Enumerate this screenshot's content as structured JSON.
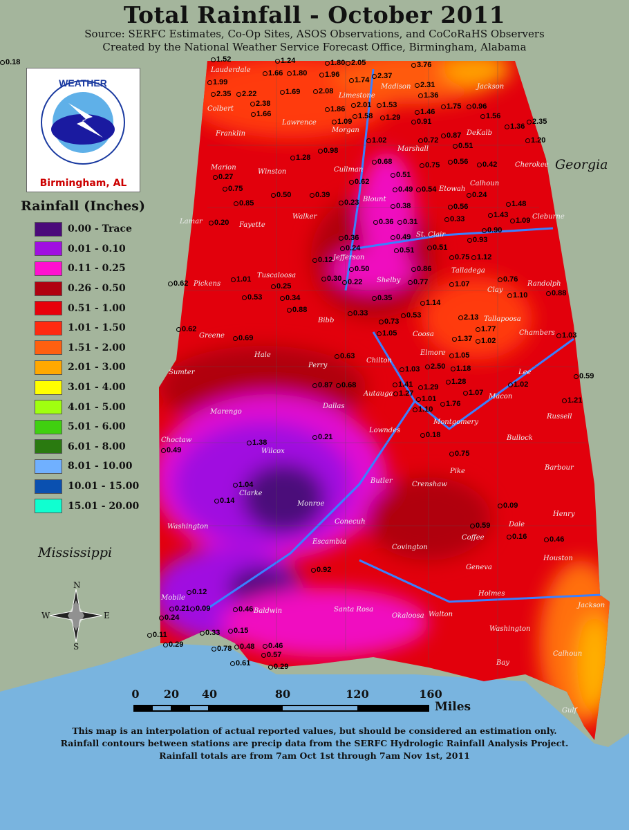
{
  "header": {
    "title": "Total Rainfall - October 2011",
    "source": "Source: SERFC Estimates, Co-Op Sites, ASOS Observations, and CoCoRaHS Observers",
    "created_by": "Created by the National Weather Service Forecast Office, Birmingham, Alabama"
  },
  "logo": {
    "text": "NATIONAL WEATHER SERVICE",
    "city": "Birmingham, AL"
  },
  "legend": {
    "title": "Rainfall (Inches)",
    "items": [
      {
        "label": "0.00 - Trace",
        "color": "#4b0a7a"
      },
      {
        "label": "0.01 - 0.10",
        "color": "#a010e0"
      },
      {
        "label": "0.11 - 0.25",
        "color": "#ff10d0"
      },
      {
        "label": "0.26 - 0.50",
        "color": "#b00010"
      },
      {
        "label": "0.51 - 1.00",
        "color": "#e8000a"
      },
      {
        "label": "1.01 - 1.50",
        "color": "#ff2a10"
      },
      {
        "label": "1.51 - 2.00",
        "color": "#ff6010"
      },
      {
        "label": "2.01 - 3.00",
        "color": "#ffa800"
      },
      {
        "label": "3.01 - 4.00",
        "color": "#ffff00"
      },
      {
        "label": "4.01 - 5.00",
        "color": "#a0ff10"
      },
      {
        "label": "5.01 - 6.00",
        "color": "#40d010"
      },
      {
        "label": "6.01 - 8.00",
        "color": "#2a7a10"
      },
      {
        "label": "8.01 - 10.00",
        "color": "#70b0ff"
      },
      {
        "label": "10.01 - 15.00",
        "color": "#0a50b0"
      },
      {
        "label": "15.01 - 20.00",
        "color": "#10ffd0"
      }
    ]
  },
  "states": {
    "georgia": "Georgia",
    "mississippi": "Mississippi"
  },
  "compass": {
    "n": "N",
    "s": "S",
    "e": "E",
    "w": "W"
  },
  "counties": [
    "Lauderdale",
    "Colbert",
    "Franklin",
    "Lawrence",
    "Limestone",
    "Madison",
    "Jackson",
    "Morgan",
    "Marshall",
    "DeKalb",
    "Cherokee",
    "Marion",
    "Winston",
    "Cullman",
    "Blount",
    "Etowah",
    "Lamar",
    "Fayette",
    "Walker",
    "St. Clair",
    "Calhoun",
    "Cleburne",
    "Pickens",
    "Tuscaloosa",
    "Jefferson",
    "Shelby",
    "Talladega",
    "Clay",
    "Randolph",
    "Greene",
    "Bibb",
    "Coosa",
    "Tallapoosa",
    "Chambers",
    "Sumter",
    "Hale",
    "Perry",
    "Chilton",
    "Autauga",
    "Elmore",
    "Lee",
    "Macon",
    "Russell",
    "Marengo",
    "Dallas",
    "Lowndes",
    "Montgomery",
    "Bullock",
    "Choctaw",
    "Wilcox",
    "Butler",
    "Crenshaw",
    "Pike",
    "Barbour",
    "Clarke",
    "Monroe",
    "Washington",
    "Conecuh",
    "Covington",
    "Coffee",
    "Dale",
    "Henry",
    "Escambia",
    "Geneva",
    "Houston",
    "Mobile",
    "Baldwin",
    "Santa Rosa",
    "Okaloosa",
    "Walton",
    "Holmes",
    "Jackson",
    "Washington",
    "Calhoun",
    "Bay",
    "Gulf"
  ],
  "stations": [
    "1.52",
    "1.24",
    "1.80",
    "2.05",
    "3.76",
    "1.99",
    "1.66",
    "1.80",
    "1.96",
    "1.74",
    "2.37",
    "2.31",
    "2.35",
    "2.22",
    "2.38",
    "1.69",
    "2.08",
    "1.36",
    "1.66",
    "1.86",
    "2.01",
    "1.53",
    "1.75",
    "0.96",
    "1.09",
    "1.58",
    "1.29",
    "0.91",
    "1.46",
    "1.56",
    "1.02",
    "0.72",
    "0.87",
    "1.36",
    "2.35",
    "0.51",
    "1.20",
    "0.98",
    "0.68",
    "0.75",
    "0.56",
    "1.28",
    "0.51",
    "0.42",
    "0.27",
    "0.62",
    "0.49",
    "0.54",
    "0.24",
    "0.75",
    "0.85",
    "0.50",
    "0.39",
    "0.23",
    "0.38",
    "0.56",
    "1.48",
    "0.20",
    "0.36",
    "0.31",
    "0.33",
    "1.43",
    "1.09",
    "0.36",
    "0.49",
    "0.93",
    "0.90",
    "0.24",
    "0.51",
    "0.51",
    "0.12",
    "0.75",
    "1.12",
    "0.62",
    "1.01",
    "0.30",
    "0.50",
    "0.86",
    "0.25",
    "0.22",
    "0.77",
    "1.07",
    "0.76",
    "0.53",
    "0.34",
    "0.35",
    "1.14",
    "1.10",
    "0.88",
    "0.88",
    "0.33",
    "0.73",
    "0.53",
    "2.13",
    "0.62",
    "1.05",
    "1.37",
    "1.77",
    "0.69",
    "1.05",
    "1.02",
    "1.18",
    "1.03",
    "0.63",
    "1.03",
    "2.50",
    "1.28",
    "1.07",
    "0.87",
    "0.68",
    "1.41",
    "1.29",
    "1.01",
    "1.02",
    "0.59",
    "1.10",
    "1.76",
    "1.27",
    "1.21",
    "1.38",
    "0.21",
    "0.49",
    "0.18",
    "0.75",
    "1.04",
    "0.14",
    "0.09",
    "0.59",
    "0.16",
    "0.46",
    "0.92",
    "0.12",
    "0.46",
    "0.24",
    "0.21",
    "0.09",
    "0.11",
    "0.33",
    "0.15",
    "0.29",
    "0.78",
    "0.48",
    "0.46",
    "0.61",
    "0.57",
    "0.29",
    "0.18"
  ],
  "scale_bar": {
    "ticks": [
      "0",
      "20",
      "40",
      "80",
      "120",
      "160"
    ],
    "unit": "Miles"
  },
  "footer": [
    "This map is an interpolation of actual reported values, but should be considered an estimation only.",
    "Rainfall contours between stations are precip data from the SERFC Hydrologic Rainfall Analysis Project.",
    "Rainfall totals are from 7am Oct 1st through 7am Nov 1st, 2011"
  ]
}
